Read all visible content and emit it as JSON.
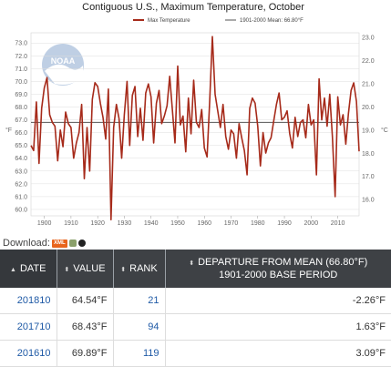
{
  "chart": {
    "title": "Contiguous U.S., Maximum Temperature, October",
    "legend": {
      "series_label": "Max Temperature",
      "mean_label": "1901-2000 Mean: 66.80°F"
    },
    "left_axis_unit": "°F",
    "right_axis_unit": "°C",
    "colors": {
      "series": "#a62a1a",
      "mean": "#555555",
      "grid": "#dddddd"
    }
  },
  "chart_data": {
    "type": "line",
    "x_range": [
      1895,
      2018
    ],
    "ylim_left": [
      59.5,
      73.8
    ],
    "ylim_right": [
      15.3,
      23.2
    ],
    "left_ticks": [
      60.0,
      61.0,
      62.0,
      63.0,
      64.0,
      65.0,
      66.0,
      67.0,
      68.0,
      69.0,
      70.0,
      71.0,
      72.0,
      73.0
    ],
    "right_ticks": [
      16.0,
      17.0,
      18.0,
      19.0,
      20.0,
      21.0,
      22.0,
      23.0
    ],
    "x_ticks": [
      1900,
      1910,
      1920,
      1930,
      1940,
      1950,
      1960,
      1970,
      1980,
      1990,
      2000,
      2010
    ],
    "mean": 66.8,
    "series": [
      {
        "name": "Max Temperature",
        "x": [
          1895,
          1896,
          1897,
          1898,
          1899,
          1900,
          1901,
          1902,
          1903,
          1904,
          1905,
          1906,
          1907,
          1908,
          1909,
          1910,
          1911,
          1912,
          1913,
          1914,
          1915,
          1916,
          1917,
          1918,
          1919,
          1920,
          1921,
          1922,
          1923,
          1924,
          1925,
          1926,
          1927,
          1928,
          1929,
          1930,
          1931,
          1932,
          1933,
          1934,
          1935,
          1936,
          1937,
          1938,
          1939,
          1940,
          1941,
          1942,
          1943,
          1944,
          1945,
          1946,
          1947,
          1948,
          1949,
          1950,
          1951,
          1952,
          1953,
          1954,
          1955,
          1956,
          1957,
          1958,
          1959,
          1960,
          1961,
          1962,
          1963,
          1964,
          1965,
          1966,
          1967,
          1968,
          1969,
          1970,
          1971,
          1972,
          1973,
          1974,
          1975,
          1976,
          1977,
          1978,
          1979,
          1980,
          1981,
          1982,
          1983,
          1984,
          1985,
          1986,
          1987,
          1988,
          1989,
          1990,
          1991,
          1992,
          1993,
          1994,
          1995,
          1996,
          1997,
          1998,
          1999,
          2000,
          2001,
          2002,
          2003,
          2004,
          2005,
          2006,
          2007,
          2008,
          2009,
          2010,
          2011,
          2012,
          2013,
          2014,
          2015,
          2016,
          2017,
          2018
        ],
        "values": [
          65.0,
          64.6,
          68.4,
          63.6,
          67.9,
          69.5,
          70.3,
          67.4,
          66.8,
          66.5,
          63.8,
          66.2,
          64.9,
          67.6,
          66.7,
          66.4,
          64.0,
          65.2,
          66.0,
          68.2,
          62.4,
          66.4,
          63.0,
          68.6,
          69.9,
          69.6,
          68.3,
          67.2,
          65.5,
          69.4,
          59.2,
          66.4,
          68.2,
          67.1,
          64.0,
          67.4,
          70.0,
          65.0,
          68.9,
          69.6,
          65.7,
          67.9,
          65.4,
          69.1,
          69.8,
          68.8,
          65.2,
          68.3,
          69.3,
          66.7,
          67.3,
          68.1,
          70.4,
          67.8,
          65.2,
          71.2,
          66.6,
          67.3,
          64.5,
          68.7,
          65.9,
          70.1,
          66.8,
          66.4,
          67.8,
          64.8,
          64.1,
          68.5,
          73.5,
          69.0,
          67.7,
          66.4,
          68.2,
          65.7,
          64.7,
          66.2,
          65.9,
          64.0,
          66.7,
          65.6,
          64.6,
          62.7,
          67.9,
          68.7,
          68.3,
          66.5,
          63.4,
          66.0,
          64.4,
          65.2,
          65.6,
          66.9,
          68.2,
          69.1,
          67.0,
          67.2,
          67.7,
          65.9,
          64.8,
          67.2,
          65.7,
          66.8,
          67.0,
          65.6,
          68.2,
          66.6,
          67.0,
          62.7,
          70.2,
          67.0,
          68.7,
          66.5,
          69.0,
          65.7,
          61.0,
          68.8,
          66.6,
          67.4,
          65.1,
          67.5,
          69.3,
          69.89,
          68.43,
          64.54
        ]
      }
    ]
  },
  "download": {
    "label": "Download:",
    "xml_label": "XML"
  },
  "table": {
    "headers": {
      "date": "DATE",
      "value": "VALUE",
      "rank": "RANK",
      "departure_line1": "DEPARTURE FROM MEAN (66.80°F)",
      "departure_line2": "1901-2000 BASE PERIOD"
    },
    "rows": [
      {
        "date": "201810",
        "value": "64.54°F",
        "rank": "21",
        "departure": "-2.26°F"
      },
      {
        "date": "201710",
        "value": "68.43°F",
        "rank": "94",
        "departure": "1.63°F"
      },
      {
        "date": "201610",
        "value": "69.89°F",
        "rank": "119",
        "departure": "3.09°F"
      }
    ]
  }
}
